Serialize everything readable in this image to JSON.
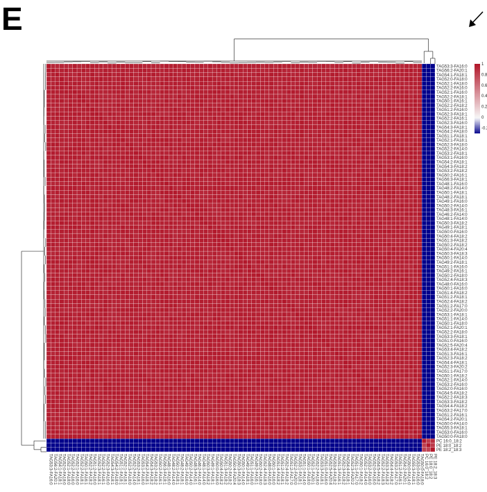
{
  "panel_label": "E",
  "chart_data": {
    "type": "heatmap",
    "title": "",
    "n_clusters": {
      "TAG": 86,
      "PE": 3
    },
    "row_labels": [
      "TAG53:3-FA16:0",
      "TAG56:2-FA20:1",
      "TAG54:1-FA18:1",
      "TAG52:0-FA18:0",
      "TAG52:1-FA18:0",
      "TAG52:2-FA16:0",
      "TAG52:1-FA16:0",
      "TAG52:2-FA18:1",
      "TAG50:1-FA16:1",
      "TAG52:2-FA18:2",
      "TAG51:2-FA16:0",
      "TAG52:3-FA18:1",
      "TAG52:2-FA16:1",
      "TAG52:3-FA16:0",
      "TAG54:3-FA18:1",
      "TAG54:2-FA18:0",
      "TAG51:1-FA18:1",
      "TAG52:1-FA18:1",
      "TAG52:3-FA18:0",
      "TAG52:2-FA14:0",
      "TAG53:2-FA18:1",
      "TAG53:1-FA16:0",
      "TAG54:2-FA18:1",
      "TAG54:3-FA18:2",
      "TAG53:2-FA18:2",
      "TAG50:2-FA16:1",
      "TAG56:3-FA18:1",
      "TAG48:1-FA16:0",
      "TAG48:2-FA14:0",
      "TAG50:1-FA18:1",
      "TAG48:2-FA18:1",
      "TAG49:1-FA16:0",
      "TAG50:2-FA14:0",
      "TAG48:3-FA16:1",
      "TAG46:2-FA14:0",
      "TAG48:1-FA14:0",
      "TAG50:3-FA18:2",
      "TAG49:1-FA18:1",
      "TAG50:0-FA16:0",
      "TAG50:4-FA18:2",
      "TAG51:3-FA18:2",
      "TAG50:2-FA18:2",
      "TAG50:4-FA20:4",
      "TAG50:3-FA18:3",
      "TAG50:1-FA14:0",
      "TAG49:2-FA18:1",
      "TAG51:1-FA16:0",
      "TAG49:2-FA16:1",
      "TAG50:2-FA18:0",
      "TAG52:4-FA18:3",
      "TAG48:0-FA16:0",
      "TAG50:1-FA16:0",
      "TAG51:4-FA18:2",
      "TAG51:2-FA18:1",
      "TAG52:4-FA18:2",
      "TAG51:2-FA17:0",
      "TAG52:2-FA20:0",
      "TAG53:1-FA18:1",
      "TAG51:1-FA14:0",
      "TAG50:1-FA18:0",
      "TAG52:1-FA20:1",
      "TAG52:2-FA18:0",
      "TAG53:3-FA18:1",
      "TAG51:0-FA16:0",
      "TAG52:5-FA20:4",
      "TAG53:4-FA18:2",
      "TAG51:3-FA16:1",
      "TAG52:3-FA18:2",
      "TAG54:4-FA18:1",
      "TAG52:3-FA20:2",
      "TAG51:1-FA17:0",
      "TAG50:1-FA18:2",
      "TAG52:1-FA14:0",
      "TAG53:2-FA16:0",
      "TAG52:0-FA16:0",
      "TAG54:5-FA18:2",
      "TAG52:2-FA18:3",
      "TAG53:3-FA18:2",
      "TAG54:4-FA18:2",
      "TAG53:2-FA17:0",
      "TAG51:2-FA16:1",
      "TAG54:2-FA20:1",
      "TAG50:0-FA14:0",
      "TAG55:3-FA18:1",
      "TAG53:0-FA16:0",
      "TAG50:0-FA18:0",
      "PC 16:0_18:2",
      "PE 18:0_18:2",
      "PE 18:2_18:3"
    ],
    "col_labels": [
      "TAG53:3-FA16:0",
      "TAG56:2-FA20:1",
      "TAG54:1-FA18:1",
      "TAG52:0-FA18:0",
      "TAG52:1-FA18:0",
      "TAG52:2-FA16:0",
      "TAG52:1-FA16:0",
      "TAG52:2-FA18:1",
      "TAG50:1-FA16:1",
      "TAG52:2-FA18:2",
      "TAG51:2-FA16:0",
      "TAG52:3-FA18:1",
      "TAG52:2-FA16:1",
      "TAG52:3-FA16:0",
      "TAG54:3-FA18:1",
      "TAG54:2-FA18:0",
      "TAG51:1-FA18:1",
      "TAG52:1-FA18:1",
      "TAG52:3-FA18:0",
      "TAG52:2-FA14:0",
      "TAG53:2-FA18:1",
      "TAG53:1-FA16:0",
      "TAG54:2-FA18:1",
      "TAG54:3-FA18:2",
      "TAG53:2-FA18:2",
      "TAG50:2-FA16:1",
      "TAG56:3-FA18:1",
      "TAG48:1-FA16:0",
      "TAG48:2-FA14:0",
      "TAG50:1-FA18:1",
      "TAG48:2-FA18:1",
      "TAG49:1-FA16:0",
      "TAG50:2-FA14:0",
      "TAG48:3-FA16:1",
      "TAG46:2-FA14:0",
      "TAG48:1-FA14:0",
      "TAG50:3-FA18:2",
      "TAG49:1-FA18:1",
      "TAG50:0-FA16:0",
      "TAG50:4-FA18:2",
      "TAG51:3-FA18:2",
      "TAG50:2-FA18:2",
      "TAG50:4-FA20:4",
      "TAG50:3-FA18:3",
      "TAG50:1-FA14:0",
      "TAG49:2-FA18:1",
      "TAG51:1-FA16:0",
      "TAG49:2-FA16:1",
      "TAG50:2-FA18:0",
      "TAG52:4-FA18:3",
      "TAG48:0-FA16:0",
      "TAG50:1-FA16:0",
      "TAG51:4-FA18:2",
      "TAG51:2-FA18:1",
      "TAG52:4-FA18:2",
      "TAG51:2-FA17:0",
      "TAG52:2-FA20:0",
      "TAG53:1-FA18:1",
      "TAG51:1-FA14:0",
      "TAG50:1-FA18:0",
      "TAG52:1-FA20:1",
      "TAG52:2-FA18:0",
      "TAG53:3-FA18:1",
      "TAG51:0-FA16:0",
      "TAG52:5-FA20:4",
      "TAG53:4-FA18:2",
      "TAG51:3-FA16:1",
      "TAG52:3-FA18:2",
      "TAG54:4-FA18:1",
      "TAG52:3-FA20:2",
      "TAG51:1-FA17:0",
      "TAG50:1-FA18:2",
      "TAG52:1-FA14:0",
      "TAG53:2-FA16:0",
      "TAG52:0-FA16:0",
      "TAG54:5-FA18:2",
      "TAG52:2-FA18:3",
      "TAG53:3-FA18:2",
      "TAG54:4-FA18:2",
      "TAG53:2-FA17:0",
      "TAG51:2-FA16:1",
      "TAG54:2-FA20:1",
      "TAG50:0-FA14:0",
      "TAG55:3-FA18:1",
      "TAG53:0-FA16:0",
      "TAG50:0-FA18:0",
      "PC 16:0_18:2",
      "PE 18:0_18:2",
      "PE 18:2_18:3"
    ],
    "values_description": "correlation matrix: TAG-TAG ~0.95-1, TAG-PE/PC ~ -0.6 to -0.95, PE-PE ~0.9",
    "block_values": {
      "within_TAG": 0.96,
      "TAG_vs_PE": -0.85,
      "within_PE": 0.85,
      "diagonal": 1
    },
    "legend": {
      "ticks": [
        "1",
        "0.8",
        "0.6",
        "0.4",
        "0.2",
        "0",
        "-0.2"
      ],
      "tick_values": [
        1,
        0.8,
        0.6,
        0.4,
        0.2,
        0,
        -0.2
      ],
      "range": [
        -0.3,
        1
      ],
      "colors": {
        "high": "#b2182b",
        "mid": "#f7f7f7",
        "low": "#00008b"
      },
      "placement": "top-right"
    },
    "dendrograms": {
      "top": true,
      "left": true
    }
  },
  "arrow_icon": "arrow-down-left-icon"
}
